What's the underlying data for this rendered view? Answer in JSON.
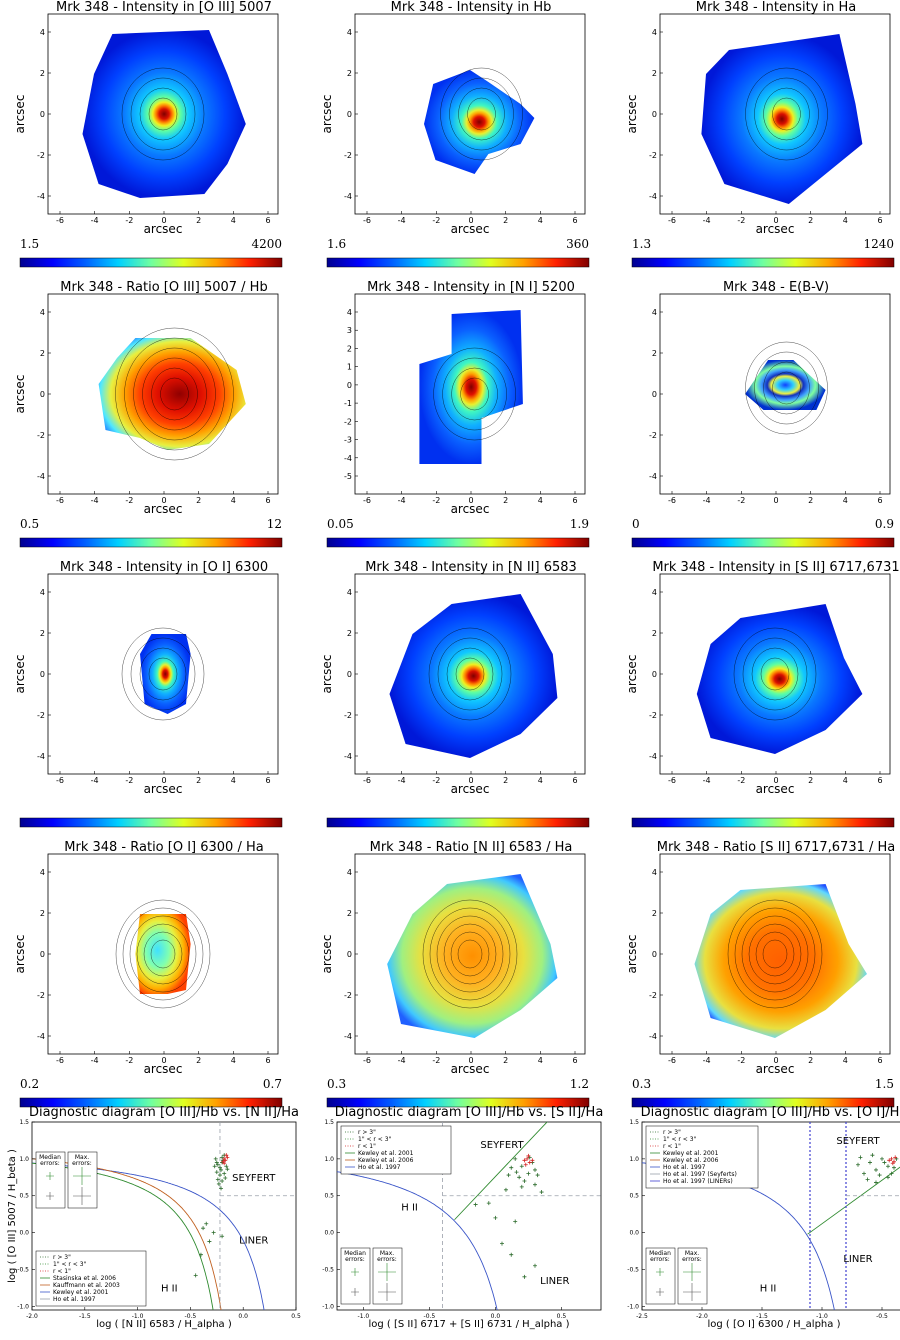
{
  "object": "Mrk 348",
  "colors": {
    "axes": "#000000",
    "dashed_ref": "#9aa0aa",
    "kewley_2001": "#2f8a2f",
    "kewley_2006": "#3a55c8",
    "kauffmann_2003": "#c06020",
    "ho_1997": "#4040d0",
    "points_outer": "#2a6a2a",
    "points_inner": "#d42020",
    "colormap": [
      "#00008f",
      "#0000ff",
      "#0080ff",
      "#00ffff",
      "#80ff80",
      "#ffff00",
      "#ff8000",
      "#ff0000",
      "#800000"
    ]
  },
  "maps": [
    {
      "title": "Mrk 348 - Intensity in [O III] 5007",
      "xlabel": "arcsec",
      "ylabel": "arcsec",
      "cbar_min": "1.5",
      "cbar_max": "4200",
      "xticks": [
        "-6",
        "-4",
        "-2",
        "0",
        "2",
        "4",
        "6"
      ],
      "yticks": [
        "4",
        "2",
        "0",
        "-2",
        "-4"
      ],
      "type": "intensity"
    },
    {
      "title": "Mrk 348 - Intensity in Hb",
      "xlabel": "arcsec",
      "ylabel": "arcsec",
      "cbar_min": "1.6",
      "cbar_max": "360",
      "xticks": [
        "-6",
        "-4",
        "-2",
        "0",
        "2",
        "4",
        "6"
      ],
      "yticks": [
        "4",
        "2",
        "0",
        "-2",
        "-4"
      ],
      "type": "intensity"
    },
    {
      "title": "Mrk 348 - Intensity in Ha",
      "xlabel": "arcsec",
      "ylabel": "arcsec",
      "cbar_min": "1.3",
      "cbar_max": "1240",
      "xticks": [
        "-6",
        "-4",
        "-2",
        "0",
        "2",
        "4",
        "6"
      ],
      "yticks": [
        "4",
        "2",
        "0",
        "-2",
        "-4"
      ],
      "type": "intensity"
    },
    {
      "title": "Mrk 348 - Ratio [O III] 5007 / Hb",
      "xlabel": "arcsec",
      "ylabel": "arcsec",
      "cbar_min": "0.5",
      "cbar_max": "12",
      "xticks": [
        "-6",
        "-4",
        "-2",
        "0",
        "2",
        "4",
        "6"
      ],
      "yticks": [
        "4",
        "2",
        "0",
        "-2",
        "-4"
      ],
      "type": "ratio-high"
    },
    {
      "title": "Mrk 348 - Intensity in [N I] 5200",
      "xlabel": "arcsec",
      "ylabel": "",
      "cbar_min": "0.05",
      "cbar_max": "1.9",
      "xticks": [
        "-6",
        "-4",
        "-2",
        "0",
        "2",
        "4",
        "6"
      ],
      "yticks": [
        "4",
        "3",
        "2",
        "1",
        "0",
        "-1",
        "-2",
        "-3",
        "-4",
        "-5"
      ],
      "type": "intensity"
    },
    {
      "title": "Mrk 348 -  E(B-V)",
      "xlabel": "",
      "ylabel": "",
      "cbar_min": "0",
      "cbar_max": "0.9",
      "xticks": [
        "-6",
        "-4",
        "-2",
        "0",
        "2",
        "4",
        "6"
      ],
      "yticks": [
        "4",
        "2",
        "0",
        "-2",
        "-4"
      ],
      "type": "ebv"
    },
    {
      "title": "Mrk 348 - Intensity in [O I] 6300",
      "xlabel": "arcsec",
      "ylabel": "arcsec",
      "cbar_min": "",
      "cbar_max": "",
      "xticks": [
        "-6",
        "-4",
        "-2",
        "0",
        "2",
        "4",
        "6"
      ],
      "yticks": [
        "4",
        "2",
        "0",
        "-2",
        "-4"
      ],
      "type": "intensity"
    },
    {
      "title": "Mrk 348 - Intensity in [N II] 6583",
      "xlabel": "arcsec",
      "ylabel": "arcsec",
      "cbar_min": "",
      "cbar_max": "",
      "xticks": [
        "-6",
        "-4",
        "-2",
        "0",
        "2",
        "4",
        "6"
      ],
      "yticks": [
        "4",
        "2",
        "0",
        "-2",
        "-4"
      ],
      "type": "intensity"
    },
    {
      "title": "Mrk 348 - Intensity in [S II] 6717,6731",
      "xlabel": "arcsec",
      "ylabel": "arcsec",
      "cbar_min": "",
      "cbar_max": "",
      "xticks": [
        "-6",
        "-4",
        "-2",
        "0",
        "2",
        "4",
        "6"
      ],
      "yticks": [
        "4",
        "2",
        "0",
        "-2",
        "-4"
      ],
      "type": "intensity"
    },
    {
      "title": "Mrk 348 - Ratio [O I] 6300 / Ha",
      "xlabel": "arcsec",
      "ylabel": "arcsec",
      "cbar_min": "0.2",
      "cbar_max": "0.7",
      "xticks": [
        "-6",
        "-4",
        "-2",
        "0",
        "2",
        "4",
        "6"
      ],
      "yticks": [
        "4",
        "2",
        "0",
        "-2",
        "-4"
      ],
      "type": "ratio-low"
    },
    {
      "title": "Mrk 348 - Ratio [N II] 6583 / Ha",
      "xlabel": "arcsec",
      "ylabel": "arcsec",
      "cbar_min": "0.3",
      "cbar_max": "1.2",
      "xticks": [
        "-6",
        "-4",
        "-2",
        "0",
        "2",
        "4",
        "6"
      ],
      "yticks": [
        "4",
        "2",
        "0",
        "-2",
        "-4"
      ],
      "type": "ratio-mid"
    },
    {
      "title": "Mrk 348 - Ratio [S II] 6717,6731 / Ha",
      "xlabel": "arcsec",
      "ylabel": "arcsec",
      "cbar_min": "0.3",
      "cbar_max": "1.5",
      "xticks": [
        "-6",
        "-4",
        "-2",
        "0",
        "2",
        "4",
        "6"
      ],
      "yticks": [
        "4",
        "2",
        "0",
        "-2",
        "-4"
      ],
      "type": "ratio-mid"
    }
  ],
  "chart_data": [
    {
      "type": "scatter",
      "title": "Diagnostic diagram [O III]/Hb vs. [N II]/Ha",
      "xlabel": "log ( [N II] 6583 / H_alpha )",
      "ylabel": "log ( [O III] 5007 / H_beta )",
      "xlim": [
        -2.0,
        0.5
      ],
      "ylim": [
        -1.05,
        1.5
      ],
      "xticks": [
        "-2.0",
        "-1.5",
        "-1.0",
        "-0.5",
        "0.0",
        "0.5"
      ],
      "yticks": [
        "1.5",
        "1.0",
        "0.5",
        "0.0",
        "-0.5",
        "-1.0"
      ],
      "regions": [
        {
          "text": "SEYFERT",
          "x": 0.1,
          "y": 0.7
        },
        {
          "text": "LINER",
          "x": 0.1,
          "y": -0.15
        },
        {
          "text": "H II",
          "x": -0.7,
          "y": -0.8
        }
      ],
      "legend": [
        "r > 3\"",
        "1\" < r < 3\"",
        "r < 1\"",
        "Stasinska et al. 2006",
        "Kauffmann et al. 2003",
        "Kewley et al. 2001",
        "Ho et al. 1997"
      ],
      "legend_placement": "lower-left",
      "error_boxes": [
        "Median errors:",
        "Max. errors:"
      ],
      "lines": {
        "kewley_2001": {
          "a": 0.61,
          "b": 0.47,
          "c": 1.19
        },
        "kauffmann_2003": {
          "a": 0.61,
          "b": 0.05,
          "c": 1.3
        },
        "stasinska_2006": {
          "a": 0.61,
          "b": -0.02,
          "c": 1.25
        },
        "ho_vertical": -0.22,
        "ho_horizontal": 0.5
      },
      "points": [
        [
          -0.25,
          0.95
        ],
        [
          -0.22,
          0.88
        ],
        [
          -0.2,
          1.02
        ],
        [
          -0.18,
          0.8
        ],
        [
          -0.24,
          0.72
        ],
        [
          -0.2,
          0.95
        ],
        [
          -0.16,
          0.9
        ],
        [
          -0.26,
          1.0
        ],
        [
          -0.22,
          0.78
        ],
        [
          -0.18,
          1.05
        ],
        [
          -0.21,
          0.85
        ],
        [
          -0.24,
          0.92
        ],
        [
          -0.17,
          0.74
        ],
        [
          -0.23,
          0.66
        ],
        [
          -0.19,
          0.98
        ],
        [
          -0.25,
          0.82
        ],
        [
          -0.2,
          0.7
        ],
        [
          -0.15,
          0.86
        ],
        [
          -0.27,
          0.9
        ],
        [
          -0.21,
          0.6
        ],
        [
          -0.35,
          0.12
        ],
        [
          -0.28,
          0.0
        ],
        [
          -0.4,
          -0.3
        ],
        [
          -0.32,
          -0.12
        ],
        [
          -0.45,
          -0.58
        ],
        [
          -0.2,
          -0.05
        ],
        [
          -0.38,
          0.06
        ]
      ],
      "points_inner": [
        [
          -0.18,
          1.0
        ],
        [
          -0.16,
          1.05
        ],
        [
          -0.19,
          0.96
        ],
        [
          -0.17,
          0.98
        ],
        [
          -0.15,
          1.02
        ],
        [
          -0.18,
          0.94
        ]
      ]
    },
    {
      "type": "scatter",
      "title": "Diagnostic diagram [O III]/Hb vs. [S II]/Ha",
      "xlabel": "log ( [S II] 6717 + [S II] 6731 / H_alpha )",
      "ylabel": "",
      "xlim": [
        -1.2,
        0.8
      ],
      "ylim": [
        -1.05,
        1.5
      ],
      "xticks": [
        "-1.0",
        "-0.5",
        "0.0",
        "0.5"
      ],
      "yticks": [
        "1.5",
        "1.0",
        "0.5",
        "0.0",
        "-0.5",
        "-1.0"
      ],
      "regions": [
        {
          "text": "SEYFERT",
          "x": 0.05,
          "y": 1.15
        },
        {
          "text": "LINER",
          "x": 0.45,
          "y": -0.7
        },
        {
          "text": "H II",
          "x": -0.65,
          "y": 0.3
        }
      ],
      "legend": [
        "r > 3\"",
        "1\" < r < 3\"",
        "r < 1\"",
        "Kewley et al. 2001",
        "Kewley et al. 2006",
        "Ho et al. 1997"
      ],
      "legend_placement": "upper-left",
      "error_boxes": [
        "Median errors:",
        "Max. errors:"
      ],
      "lines": {
        "kewley_2001": {
          "a": 0.72,
          "b": 0.32,
          "c": 1.3
        },
        "kewley_2006": {
          "x0": -0.31,
          "slope": 1.89,
          "intercept": 0.76
        },
        "ho_vertical": -0.4,
        "ho_horizontal": 0.5
      },
      "points": [
        [
          0.2,
          0.9
        ],
        [
          0.25,
          0.8
        ],
        [
          0.15,
          1.0
        ],
        [
          0.3,
          0.85
        ],
        [
          0.18,
          0.75
        ],
        [
          0.28,
          0.95
        ],
        [
          0.22,
          0.7
        ],
        [
          0.12,
          0.88
        ],
        [
          0.32,
          0.78
        ],
        [
          0.2,
          0.62
        ],
        [
          0.26,
          1.02
        ],
        [
          0.16,
          0.82
        ],
        [
          0.3,
          0.65
        ],
        [
          0.1,
          0.78
        ],
        [
          -0.05,
          0.4
        ],
        [
          0.0,
          0.2
        ],
        [
          0.15,
          0.15
        ],
        [
          0.05,
          -0.15
        ],
        [
          0.12,
          -0.3
        ],
        [
          0.3,
          -0.45
        ],
        [
          0.22,
          -0.6
        ],
        [
          -0.15,
          0.38
        ],
        [
          0.35,
          0.55
        ],
        [
          0.08,
          0.58
        ]
      ],
      "points_inner": [
        [
          0.24,
          1.0
        ],
        [
          0.26,
          0.95
        ],
        [
          0.22,
          0.98
        ],
        [
          0.28,
          0.98
        ],
        [
          0.25,
          1.04
        ],
        [
          0.23,
          0.92
        ]
      ]
    },
    {
      "type": "scatter",
      "title": "Diagnostic diagram [O III]/Hb vs. [O I]/Ha",
      "xlabel": "log ( [O I] 6300 / H_alpha )",
      "ylabel": "",
      "xlim": [
        -2.5,
        -0.3
      ],
      "ylim": [
        -1.05,
        1.5
      ],
      "xticks": [
        "-2.5",
        "-2.0",
        "-1.5",
        "-1.0",
        "-0.5"
      ],
      "yticks": [
        "1.5",
        "1.0",
        "0.5",
        "0.0",
        "-0.5",
        "-1.0"
      ],
      "regions": [
        {
          "text": "SEYFERT",
          "x": -0.7,
          "y": 1.2
        },
        {
          "text": "LINER",
          "x": -0.7,
          "y": -0.4
        },
        {
          "text": "H II",
          "x": -1.45,
          "y": -0.8
        }
      ],
      "legend": [
        "r > 3\"",
        "1\" < r < 3\"",
        "r < 1\"",
        "Kewley et al. 2001",
        "Kewley et al. 2006",
        "Ho et al. 1997",
        "Ho et al. 1997 (Seyferts)",
        "Ho et al. 1997 (LINERs)"
      ],
      "legend_placement": "upper-left",
      "error_boxes": [
        "Median errors:",
        "Max. errors:"
      ],
      "lines": {
        "kewley_2001": {
          "a": 0.73,
          "b": -0.59,
          "c": 1.33
        },
        "kewley_2006": {
          "x0": -1.12,
          "slope": 1.18,
          "intercept": 1.3
        },
        "ho_vertical_seyfert": -1.1,
        "ho_vertical_liner": -0.8,
        "ho_horizontal": 0.5
      },
      "points": [
        [
          -0.6,
          0.95
        ],
        [
          -0.55,
          0.85
        ],
        [
          -0.5,
          1.0
        ],
        [
          -0.45,
          0.9
        ],
        [
          -0.65,
          0.8
        ],
        [
          -0.4,
          0.88
        ],
        [
          -0.58,
          1.05
        ],
        [
          -0.52,
          0.78
        ],
        [
          -0.48,
          0.95
        ],
        [
          -0.7,
          0.92
        ],
        [
          -0.62,
          0.72
        ],
        [
          -0.42,
          0.8
        ],
        [
          -0.55,
          0.68
        ],
        [
          -0.38,
          1.0
        ],
        [
          -0.68,
          1.02
        ],
        [
          -0.45,
          0.75
        ]
      ],
      "points_inner": [
        [
          -0.42,
          1.0
        ],
        [
          -0.4,
          0.96
        ],
        [
          -0.44,
          0.98
        ],
        [
          -0.39,
          1.02
        ],
        [
          -0.41,
          0.94
        ]
      ]
    }
  ]
}
